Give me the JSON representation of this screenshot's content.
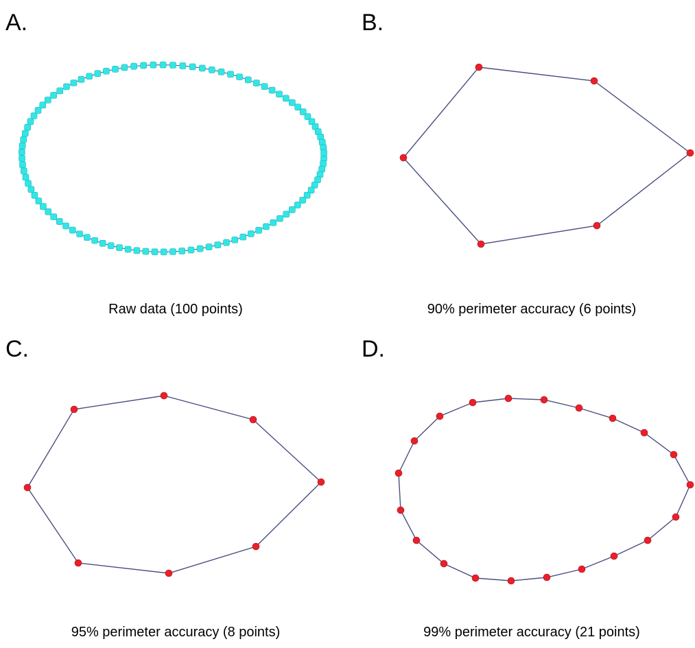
{
  "panels": [
    {
      "letter": "A.",
      "caption": "Raw data (100 points)",
      "point_count": 100,
      "marker_color": "#33e6e6",
      "shape": "raw-ellipse"
    },
    {
      "letter": "B.",
      "caption": "90% perimeter accuracy (6 points)",
      "point_count": 6,
      "marker_color": "#e8202a"
    },
    {
      "letter": "C.",
      "caption": "95% perimeter accuracy (8 points)",
      "point_count": 8,
      "marker_color": "#e8202a"
    },
    {
      "letter": "D.",
      "caption": "99% perimeter accuracy (21 points)",
      "point_count": 21,
      "marker_color": "#e8202a"
    }
  ],
  "line_color": "#4a4f80"
}
